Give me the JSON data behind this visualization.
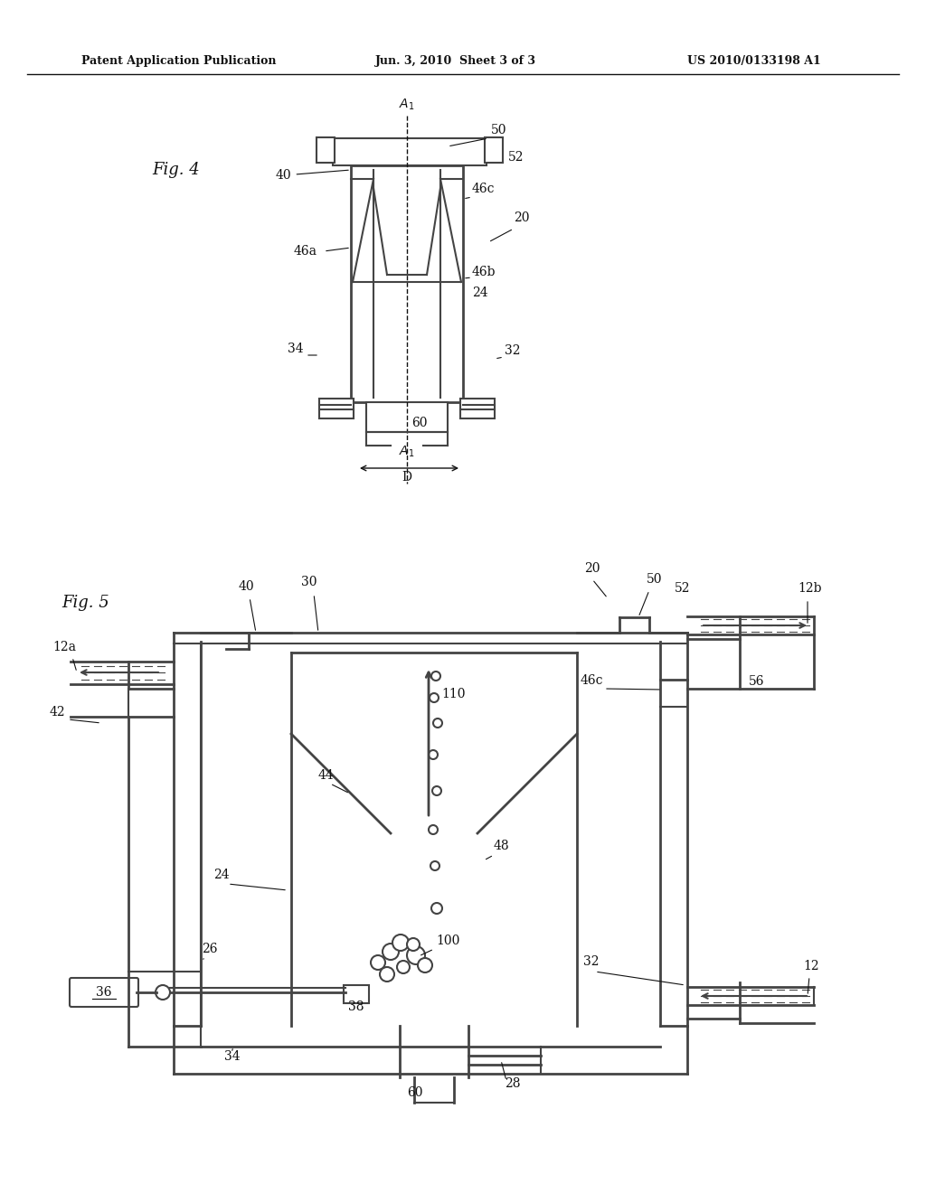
{
  "bg_color": "#ffffff",
  "header_left": "Patent Application Publication",
  "header_mid": "Jun. 3, 2010  Sheet 3 of 3",
  "header_right": "US 2010/0133198 A1",
  "fig4_label": "Fig. 4",
  "fig5_label": "Fig. 5"
}
